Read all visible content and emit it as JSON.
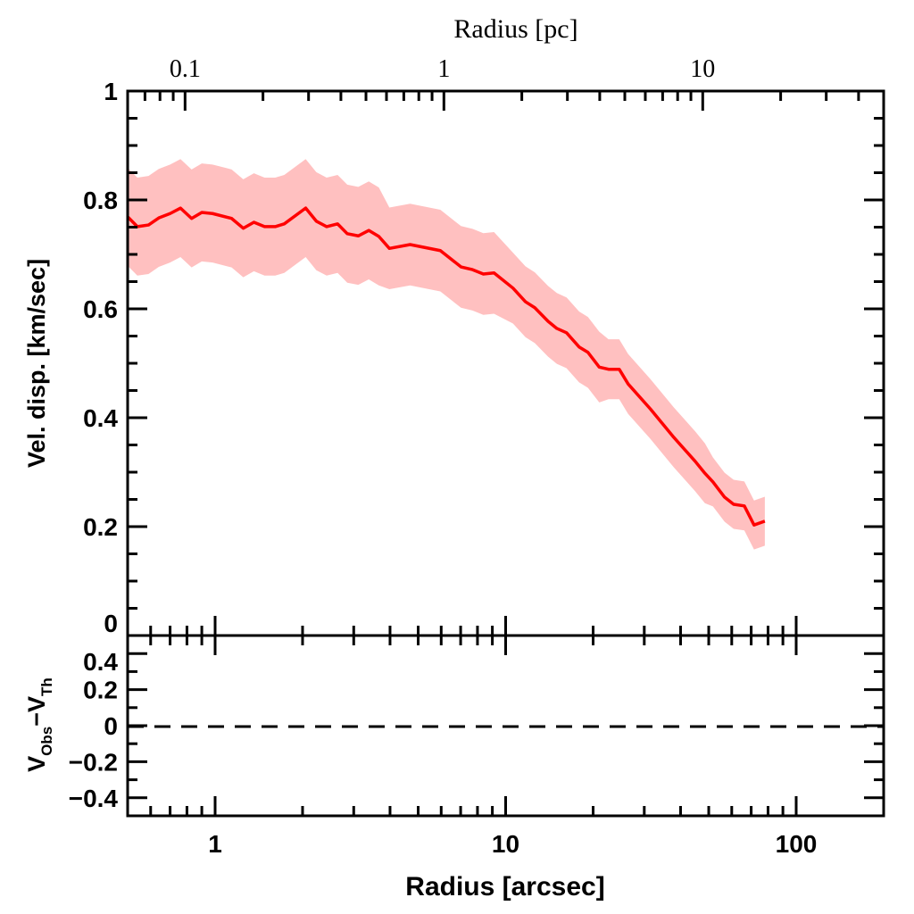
{
  "chart_data": [
    {
      "type": "area",
      "panel": "top",
      "xlabel": "Radius [arcsec]",
      "ylabel": "Vel. disp. [km/sec]",
      "x_scale": "log",
      "xlim": [
        0.5,
        200
      ],
      "ylim": [
        0,
        1
      ],
      "x_ticks": [
        "1",
        "10",
        "100"
      ],
      "y_ticks": [
        "0",
        "0.2",
        "0.4",
        "0.6",
        "0.8",
        "1"
      ],
      "top_axis": {
        "label": "Radius [pc]",
        "scale": "log",
        "range": [
          0.06,
          50
        ],
        "ticks": [
          "0.1",
          "1",
          "10"
        ]
      },
      "grid": false,
      "colors": {
        "line": "#ff0000",
        "band": "#ffc0c0"
      },
      "x": [
        0.5,
        0.54,
        0.59,
        0.64,
        0.7,
        0.76,
        0.83,
        0.9,
        0.98,
        1.14,
        1.25,
        1.36,
        1.48,
        1.61,
        1.73,
        2.05,
        2.23,
        2.42,
        2.64,
        2.85,
        3.11,
        3.38,
        3.66,
        3.98,
        4.69,
        5.96,
        7.02,
        7.69,
        8.38,
        9.12,
        10.6,
        11.7,
        12.6,
        14.0,
        15.0,
        16.2,
        17.9,
        19.2,
        21.0,
        22.6,
        24.6,
        26.4,
        31.5,
        37.9,
        44.9,
        48.5,
        51.7,
        56.7,
        60.9,
        66.3,
        71.6,
        78.0
      ],
      "y": [
        0.769,
        0.751,
        0.754,
        0.767,
        0.775,
        0.785,
        0.766,
        0.777,
        0.775,
        0.766,
        0.748,
        0.759,
        0.751,
        0.751,
        0.756,
        0.785,
        0.761,
        0.751,
        0.756,
        0.738,
        0.734,
        0.744,
        0.733,
        0.711,
        0.718,
        0.707,
        0.677,
        0.672,
        0.664,
        0.666,
        0.638,
        0.613,
        0.602,
        0.577,
        0.564,
        0.556,
        0.53,
        0.52,
        0.493,
        0.489,
        0.489,
        0.462,
        0.416,
        0.364,
        0.32,
        0.298,
        0.282,
        0.254,
        0.241,
        0.238,
        0.203,
        0.21
      ],
      "err": [
        0.09,
        0.09,
        0.09,
        0.09,
        0.09,
        0.09,
        0.09,
        0.09,
        0.09,
        0.09,
        0.09,
        0.09,
        0.09,
        0.09,
        0.09,
        0.09,
        0.09,
        0.09,
        0.09,
        0.09,
        0.09,
        0.09,
        0.09,
        0.075,
        0.075,
        0.075,
        0.075,
        0.075,
        0.075,
        0.075,
        0.065,
        0.065,
        0.065,
        0.065,
        0.065,
        0.065,
        0.065,
        0.065,
        0.065,
        0.055,
        0.055,
        0.055,
        0.055,
        0.055,
        0.055,
        0.055,
        0.045,
        0.045,
        0.045,
        0.045,
        0.045,
        0.045
      ]
    },
    {
      "type": "line",
      "panel": "bottom",
      "xlabel": "Radius [arcsec]",
      "ylabel_main": "V",
      "ylabel_sub1": "Obs",
      "ylabel_minus": "−",
      "ylabel_main2": "V",
      "ylabel_sub2": "Th",
      "x_scale": "log",
      "xlim": [
        0.5,
        200
      ],
      "ylim": [
        -0.5,
        0.5
      ],
      "y_ticks": [
        "0.4",
        "0.2",
        "0",
        "−0.2",
        "−0.4"
      ],
      "reference_line": {
        "y": 0,
        "style": "dashed"
      }
    }
  ]
}
